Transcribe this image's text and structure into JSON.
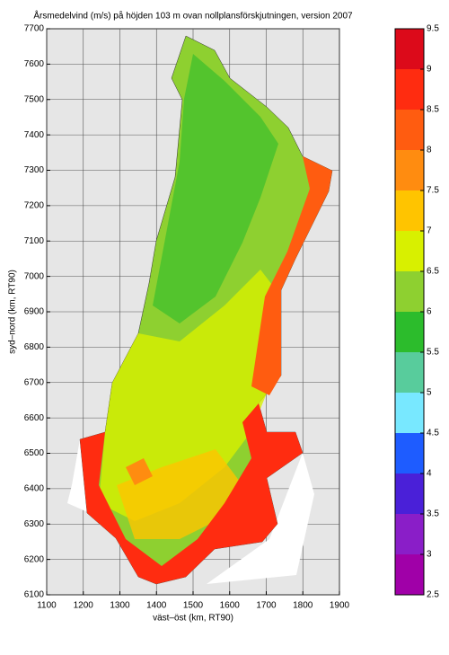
{
  "map": {
    "title": "Årsmedelvind (m/s) på höjden 103 m ovan nollplansförskjutningen, version 2007",
    "x_label": "väst–öst (km, RT90)",
    "y_label": "syd–nord (km, RT90)",
    "xlim": [
      1100,
      1900
    ],
    "ylim": [
      6100,
      7700
    ],
    "xticks": [
      1100,
      1200,
      1300,
      1400,
      1500,
      1600,
      1700,
      1800,
      1900
    ],
    "yticks": [
      6100,
      6200,
      6300,
      6400,
      6500,
      6600,
      6700,
      6800,
      6900,
      7000,
      7100,
      7200,
      7300,
      7400,
      7500,
      7600,
      7700
    ],
    "grid": true,
    "colorbar": {
      "levels": [
        2.5,
        3,
        3.5,
        4,
        4.5,
        5,
        5.5,
        6,
        6.5,
        7,
        7.5,
        8,
        8.5,
        9,
        9.5
      ],
      "colors": [
        "#a000a8",
        "#8a1ec8",
        "#4a20d8",
        "#1e5cff",
        "#78e8ff",
        "#58cc9c",
        "#2cbc2c",
        "#8ed030",
        "#d8f000",
        "#ffc400",
        "#ff8c10",
        "#ff5c10",
        "#ff2c10",
        "#dc0a1a"
      ]
    }
  }
}
